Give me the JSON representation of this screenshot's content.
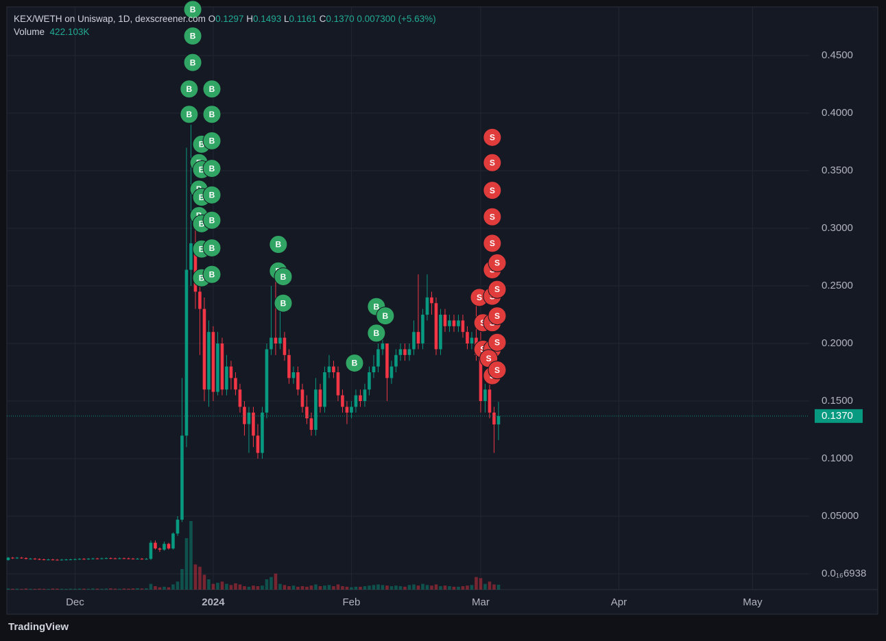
{
  "chart_data": {
    "type": "candlestick",
    "title": "KEX/WETH on Uniswap, 1D, dexscreener.com",
    "ohlc_labels": {
      "open": "O",
      "high": "H",
      "low": "L",
      "close": "C"
    },
    "last": {
      "open": "0.1297",
      "high": "0.1493",
      "low": "0.1161",
      "close": "0.1370",
      "change": "0.007300",
      "change_pct": "(+5.63%)"
    },
    "volume_label": "Volume",
    "volume_value": "422.103K",
    "up_color": "#089981",
    "down_color": "#f23645",
    "grid": true,
    "xlim": [
      -0.3,
      179.7
    ],
    "xticks": [
      {
        "value": 15,
        "label": "Dec"
      },
      {
        "value": 46,
        "label": "2024"
      },
      {
        "value": 77,
        "label": "Feb"
      },
      {
        "value": 106,
        "label": "Mar"
      },
      {
        "value": 137,
        "label": "Apr"
      },
      {
        "value": 167,
        "label": "May"
      }
    ],
    "ylim": [
      -0.0137,
      0.4923
    ],
    "yticks": [
      {
        "value": 6.938e-17,
        "label": "0.0₁₆6938"
      },
      {
        "value": 0.05,
        "label": "0.05000"
      },
      {
        "value": 0.1,
        "label": "0.1000"
      },
      {
        "value": 0.15,
        "label": "0.1500"
      },
      {
        "value": 0.2,
        "label": "0.2000"
      },
      {
        "value": 0.25,
        "label": "0.2500"
      },
      {
        "value": 0.3,
        "label": "0.3000"
      },
      {
        "value": 0.35,
        "label": "0.3500"
      },
      {
        "value": 0.4,
        "label": "0.4000"
      },
      {
        "value": 0.45,
        "label": "0.4500"
      }
    ],
    "open": [
      0.012,
      0.014,
      0.0135,
      0.014,
      0.0137,
      0.013,
      0.0132,
      0.0128,
      0.0125,
      0.0123,
      0.0124,
      0.0122,
      0.0121,
      0.0123,
      0.0124,
      0.0125,
      0.0127,
      0.013,
      0.0128,
      0.0131,
      0.0133,
      0.0132,
      0.0134,
      0.0136,
      0.0134,
      0.0133,
      0.0135,
      0.0134,
      0.0132,
      0.013,
      0.0131,
      0.0128,
      0.013,
      0.027,
      0.022,
      0.021,
      0.026,
      0.022,
      0.035,
      0.047,
      0.12,
      0.264,
      0.287,
      0.245,
      0.23,
      0.16,
      0.21,
      0.158,
      0.2,
      0.16,
      0.18,
      0.17,
      0.16,
      0.145,
      0.13,
      0.14,
      0.12,
      0.105,
      0.14,
      0.195,
      0.205,
      0.2,
      0.205,
      0.19,
      0.17,
      0.175,
      0.16,
      0.145,
      0.135,
      0.125,
      0.16,
      0.145,
      0.175,
      0.18,
      0.175,
      0.155,
      0.145,
      0.14,
      0.145,
      0.155,
      0.15,
      0.16,
      0.175,
      0.18,
      0.195,
      0.2,
      0.17,
      0.18,
      0.19,
      0.195,
      0.19,
      0.195,
      0.21,
      0.2,
      0.225,
      0.24,
      0.235,
      0.195,
      0.225,
      0.215,
      0.22,
      0.215,
      0.22,
      0.21,
      0.2,
      0.205,
      0.19,
      0.15,
      0.16,
      0.14,
      0.1297
    ],
    "high": [
      0.0146,
      0.0146,
      0.0146,
      0.0146,
      0.0143,
      0.0138,
      0.0138,
      0.0134,
      0.0131,
      0.013,
      0.013,
      0.0128,
      0.0129,
      0.013,
      0.0131,
      0.0133,
      0.0136,
      0.0136,
      0.0137,
      0.0139,
      0.0139,
      0.014,
      0.0142,
      0.0142,
      0.014,
      0.0141,
      0.0141,
      0.014,
      0.0138,
      0.0138,
      0.0137,
      0.0137,
      0.029,
      0.029,
      0.023,
      0.028,
      0.027,
      0.036,
      0.05,
      0.17,
      0.37,
      0.39,
      0.3,
      0.26,
      0.24,
      0.22,
      0.215,
      0.21,
      0.205,
      0.19,
      0.185,
      0.175,
      0.165,
      0.15,
      0.145,
      0.145,
      0.13,
      0.145,
      0.2,
      0.25,
      0.27,
      0.24,
      0.21,
      0.195,
      0.18,
      0.18,
      0.165,
      0.155,
      0.14,
      0.17,
      0.165,
      0.18,
      0.19,
      0.185,
      0.18,
      0.16,
      0.15,
      0.15,
      0.16,
      0.16,
      0.165,
      0.18,
      0.19,
      0.2,
      0.205,
      0.2,
      0.185,
      0.195,
      0.2,
      0.2,
      0.2,
      0.22,
      0.26,
      0.23,
      0.26,
      0.245,
      0.24,
      0.23,
      0.23,
      0.225,
      0.225,
      0.225,
      0.225,
      0.215,
      0.21,
      0.24,
      0.21,
      0.165,
      0.165,
      0.145,
      0.1493
    ],
    "low": [
      0.0114,
      0.0129,
      0.0129,
      0.0131,
      0.0124,
      0.0124,
      0.0122,
      0.0119,
      0.0117,
      0.0117,
      0.0116,
      0.0115,
      0.0115,
      0.0117,
      0.0118,
      0.0119,
      0.0121,
      0.0122,
      0.0122,
      0.0125,
      0.0126,
      0.0126,
      0.0128,
      0.0128,
      0.0127,
      0.0127,
      0.0128,
      0.0126,
      0.0124,
      0.0124,
      0.0122,
      0.0122,
      0.012,
      0.021,
      0.019,
      0.02,
      0.021,
      0.021,
      0.033,
      0.045,
      0.11,
      0.25,
      0.23,
      0.19,
      0.15,
      0.145,
      0.15,
      0.155,
      0.155,
      0.155,
      0.16,
      0.155,
      0.14,
      0.12,
      0.105,
      0.11,
      0.1,
      0.1,
      0.135,
      0.19,
      0.19,
      0.195,
      0.185,
      0.165,
      0.165,
      0.155,
      0.14,
      0.13,
      0.12,
      0.12,
      0.14,
      0.14,
      0.17,
      0.17,
      0.15,
      0.14,
      0.13,
      0.135,
      0.14,
      0.145,
      0.145,
      0.155,
      0.17,
      0.175,
      0.19,
      0.15,
      0.165,
      0.175,
      0.185,
      0.185,
      0.185,
      0.19,
      0.195,
      0.195,
      0.22,
      0.225,
      0.19,
      0.19,
      0.21,
      0.21,
      0.21,
      0.21,
      0.205,
      0.195,
      0.195,
      0.185,
      0.14,
      0.14,
      0.135,
      0.105,
      0.1161
    ],
    "close": [
      0.014,
      0.0135,
      0.014,
      0.0137,
      0.013,
      0.0132,
      0.0128,
      0.0125,
      0.0123,
      0.0124,
      0.0122,
      0.0121,
      0.0123,
      0.0124,
      0.0125,
      0.0127,
      0.013,
      0.0128,
      0.0131,
      0.0133,
      0.0132,
      0.0134,
      0.0136,
      0.0134,
      0.0133,
      0.0135,
      0.0134,
      0.0132,
      0.013,
      0.0131,
      0.0128,
      0.013,
      0.027,
      0.022,
      0.021,
      0.026,
      0.022,
      0.035,
      0.047,
      0.12,
      0.264,
      0.287,
      0.245,
      0.23,
      0.16,
      0.21,
      0.158,
      0.2,
      0.16,
      0.18,
      0.17,
      0.16,
      0.145,
      0.13,
      0.14,
      0.12,
      0.105,
      0.14,
      0.195,
      0.205,
      0.2,
      0.205,
      0.19,
      0.17,
      0.175,
      0.16,
      0.145,
      0.135,
      0.125,
      0.16,
      0.145,
      0.175,
      0.18,
      0.175,
      0.155,
      0.145,
      0.14,
      0.145,
      0.155,
      0.15,
      0.16,
      0.175,
      0.18,
      0.195,
      0.2,
      0.17,
      0.18,
      0.19,
      0.195,
      0.19,
      0.195,
      0.21,
      0.2,
      0.225,
      0.24,
      0.235,
      0.195,
      0.225,
      0.215,
      0.22,
      0.215,
      0.22,
      0.21,
      0.2,
      0.205,
      0.19,
      0.15,
      0.16,
      0.14,
      0.1297,
      0.137
    ],
    "volume": [
      90000,
      70000,
      80000,
      60000,
      90000,
      70000,
      60000,
      80000,
      70000,
      60000,
      90000,
      80000,
      70000,
      60000,
      80000,
      70000,
      90000,
      80000,
      70000,
      100000,
      80000,
      70000,
      90000,
      110000,
      80000,
      70000,
      90000,
      80000,
      100000,
      120000,
      90000,
      110000,
      500000,
      300000,
      200000,
      250000,
      200000,
      450000,
      700000,
      1800000,
      4500000,
      6000000,
      2200000,
      2000000,
      1300000,
      900000,
      500000,
      600000,
      700000,
      500000,
      400000,
      550000,
      450000,
      300000,
      250000,
      350000,
      300000,
      350000,
      900000,
      1100000,
      1400000,
      500000,
      400000,
      300000,
      350000,
      250000,
      300000,
      250000,
      350000,
      450000,
      300000,
      350000,
      400000,
      300000,
      450000,
      300000,
      250000,
      200000,
      250000,
      250000,
      300000,
      350000,
      400000,
      450000,
      400000,
      350000,
      300000,
      350000,
      300000,
      250000,
      400000,
      450000,
      350000,
      500000,
      400000,
      350000,
      450000,
      300000,
      350000,
      300000,
      250000,
      250000,
      300000,
      350000,
      400000,
      1100000,
      1000000,
      500000,
      700000,
      450000,
      422103
    ],
    "markers": [
      {
        "x": 41.4,
        "y": 0.49,
        "label": "B"
      },
      {
        "x": 41.4,
        "y": 0.467,
        "label": "B"
      },
      {
        "x": 41.4,
        "y": 0.444,
        "label": "B"
      },
      {
        "x": 40.6,
        "y": 0.421,
        "label": "B"
      },
      {
        "x": 45.7,
        "y": 0.421,
        "label": "B"
      },
      {
        "x": 40.6,
        "y": 0.399,
        "label": "B"
      },
      {
        "x": 45.7,
        "y": 0.399,
        "label": "B"
      },
      {
        "x": 43.4,
        "y": 0.373,
        "label": "B"
      },
      {
        "x": 45.7,
        "y": 0.376,
        "label": "B"
      },
      {
        "x": 42.8,
        "y": 0.357,
        "label": "B"
      },
      {
        "x": 43.4,
        "y": 0.351,
        "label": "B"
      },
      {
        "x": 45.7,
        "y": 0.352,
        "label": "B"
      },
      {
        "x": 42.8,
        "y": 0.334,
        "label": "B"
      },
      {
        "x": 43.4,
        "y": 0.327,
        "label": "B"
      },
      {
        "x": 45.7,
        "y": 0.329,
        "label": "B"
      },
      {
        "x": 42.8,
        "y": 0.311,
        "label": "B"
      },
      {
        "x": 43.4,
        "y": 0.304,
        "label": "B"
      },
      {
        "x": 45.7,
        "y": 0.307,
        "label": "B"
      },
      {
        "x": 43.4,
        "y": 0.282,
        "label": "B"
      },
      {
        "x": 45.7,
        "y": 0.283,
        "label": "B"
      },
      {
        "x": 43.4,
        "y": 0.257,
        "label": "B"
      },
      {
        "x": 45.7,
        "y": 0.26,
        "label": "B"
      },
      {
        "x": 60.6,
        "y": 0.286,
        "label": "B"
      },
      {
        "x": 60.6,
        "y": 0.263,
        "label": "B"
      },
      {
        "x": 61.7,
        "y": 0.258,
        "label": "B"
      },
      {
        "x": 61.7,
        "y": 0.235,
        "label": "B"
      },
      {
        "x": 82.6,
        "y": 0.232,
        "label": "B"
      },
      {
        "x": 84.6,
        "y": 0.224,
        "label": "B"
      },
      {
        "x": 82.6,
        "y": 0.209,
        "label": "B"
      },
      {
        "x": 77.7,
        "y": 0.183,
        "label": "B"
      },
      {
        "x": 108.6,
        "y": 0.379,
        "label": "S"
      },
      {
        "x": 108.6,
        "y": 0.357,
        "label": "S"
      },
      {
        "x": 108.6,
        "y": 0.333,
        "label": "S"
      },
      {
        "x": 108.6,
        "y": 0.31,
        "label": "S"
      },
      {
        "x": 108.6,
        "y": 0.287,
        "label": "S"
      },
      {
        "x": 108.6,
        "y": 0.264,
        "label": "S"
      },
      {
        "x": 109.7,
        "y": 0.27,
        "label": "S"
      },
      {
        "x": 105.7,
        "y": 0.24,
        "label": "S"
      },
      {
        "x": 108.6,
        "y": 0.241,
        "label": "S"
      },
      {
        "x": 109.7,
        "y": 0.247,
        "label": "S"
      },
      {
        "x": 106.5,
        "y": 0.218,
        "label": "S"
      },
      {
        "x": 108.6,
        "y": 0.218,
        "label": "S"
      },
      {
        "x": 109.7,
        "y": 0.224,
        "label": "S"
      },
      {
        "x": 106.5,
        "y": 0.195,
        "label": "S"
      },
      {
        "x": 108.6,
        "y": 0.195,
        "label": "S"
      },
      {
        "x": 109.7,
        "y": 0.201,
        "label": "S"
      },
      {
        "x": 107.8,
        "y": 0.187,
        "label": "S"
      },
      {
        "x": 108.6,
        "y": 0.172,
        "label": "S"
      },
      {
        "x": 109.7,
        "y": 0.177,
        "label": "S"
      }
    ],
    "brand": "TradingView"
  }
}
